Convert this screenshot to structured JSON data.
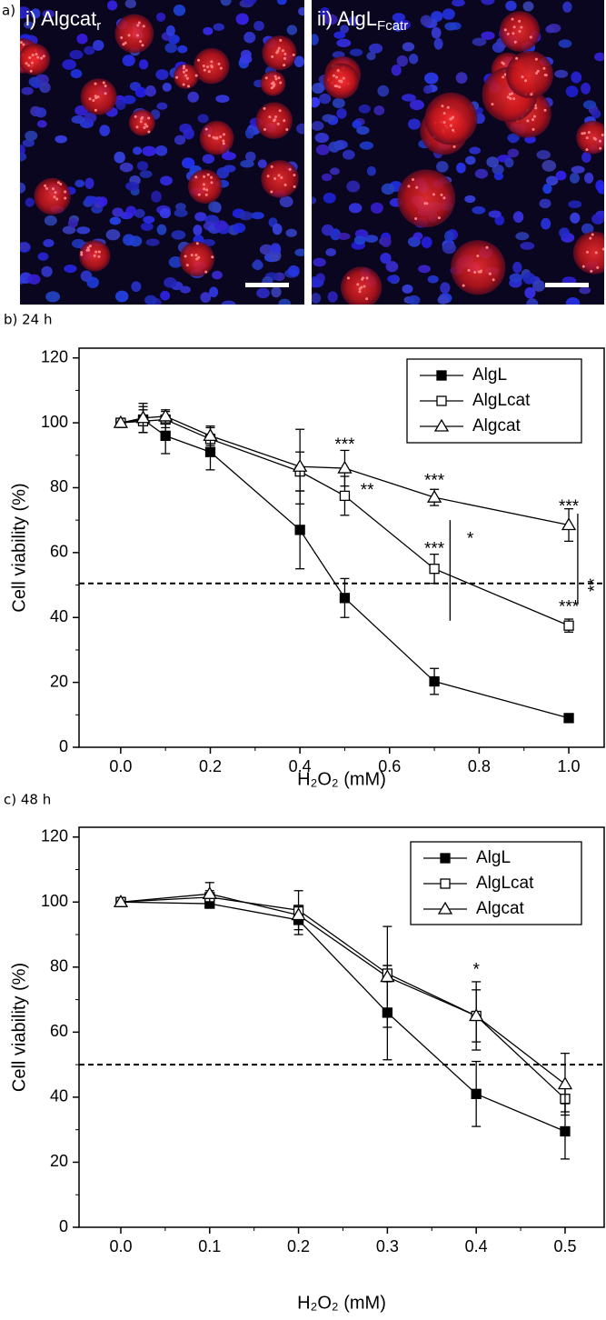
{
  "panel_label": "a)",
  "images": [
    {
      "main": "i) Algcat",
      "sub": "r"
    },
    {
      "main": "ii) AlgL",
      "sub": "Fcatr"
    }
  ],
  "chart_data": [
    {
      "type": "line",
      "title": "b) 24 h",
      "xlabel": "H₂O₂ (mM)",
      "ylabel": "Cell viability (%)",
      "x": [
        0,
        0.05,
        0.1,
        0.2,
        0.4,
        0.5,
        0.7,
        1.0
      ],
      "xlim": [
        -0.093,
        1.079
      ],
      "ylim": [
        0,
        123
      ],
      "xticks": [
        {
          "value": 0,
          "label": "0.0"
        },
        {
          "value": 0.2,
          "label": "0.2"
        },
        {
          "value": 0.4,
          "label": "0.4"
        },
        {
          "value": 0.6,
          "label": "0.6"
        },
        {
          "value": 0.8,
          "label": "0.8"
        },
        {
          "value": 1.0,
          "label": "1.0"
        }
      ],
      "yticks": [
        0,
        20,
        40,
        60,
        80,
        100,
        120
      ],
      "reference_line": 50.5,
      "legend": "upper right",
      "series": [
        {
          "name": "AlgL",
          "color": "#000000",
          "marker": "square",
          "filled": true,
          "values": [
            100,
            101,
            96,
            91,
            67,
            46,
            20.3,
            9
          ],
          "errors": [
            0,
            4,
            5.5,
            5.5,
            12,
            6,
            4,
            0.5
          ]
        },
        {
          "name": "AlgLcat",
          "color": "#000000",
          "marker": "square",
          "filled": false,
          "values": [
            100,
            100.5,
            101,
            95,
            85,
            77.5,
            55,
            37.5
          ],
          "errors": [
            0,
            3.5,
            2.5,
            3.5,
            6,
            6,
            4.5,
            2
          ]
        },
        {
          "name": "Algcat",
          "color": "#000000",
          "marker": "triangle",
          "filled": false,
          "values": [
            100,
            101.5,
            102,
            96,
            86.5,
            86,
            77,
            68.5
          ],
          "errors": [
            0,
            4.5,
            2,
            3,
            11.5,
            5.5,
            2.5,
            5
          ]
        }
      ],
      "annotations": [
        "***",
        "**",
        "***",
        "***",
        "***",
        "***",
        "*",
        "**"
      ]
    },
    {
      "type": "line",
      "title": "c) 48 h",
      "xlabel": "H₂O₂ (mM)",
      "ylabel": "Cell viability (%)",
      "x": [
        0,
        0.1,
        0.2,
        0.3,
        0.4,
        0.5
      ],
      "xlim": [
        -0.047,
        0.544
      ],
      "ylim": [
        0,
        123
      ],
      "xticks": [
        {
          "value": 0,
          "label": "0.0"
        },
        {
          "value": 0.1,
          "label": "0.1"
        },
        {
          "value": 0.2,
          "label": "0.2"
        },
        {
          "value": 0.3,
          "label": "0.3"
        },
        {
          "value": 0.4,
          "label": "0.4"
        },
        {
          "value": 0.5,
          "label": "0.5"
        }
      ],
      "yticks": [
        0,
        20,
        40,
        60,
        80,
        100,
        120
      ],
      "reference_line": 50,
      "legend": "upper right",
      "series": [
        {
          "name": "AlgL",
          "color": "#000000",
          "marker": "square",
          "filled": true,
          "values": [
            100,
            99.5,
            94.5,
            66,
            41,
            29.5
          ],
          "errors": [
            0,
            1,
            4.5,
            14.5,
            10,
            8.5
          ]
        },
        {
          "name": "AlgLcat",
          "color": "#000000",
          "marker": "square",
          "filled": false,
          "values": [
            100,
            101.5,
            97.5,
            78,
            65,
            39.5
          ],
          "errors": [
            0,
            2,
            6,
            2.5,
            10.5,
            4
          ]
        },
        {
          "name": "Algcat",
          "color": "#000000",
          "marker": "triangle",
          "filled": false,
          "values": [
            100,
            102.5,
            96,
            77,
            65,
            44
          ],
          "errors": [
            0,
            3.5,
            2.5,
            15.5,
            8,
            9.5
          ]
        }
      ],
      "annotations": [
        "*"
      ]
    }
  ]
}
